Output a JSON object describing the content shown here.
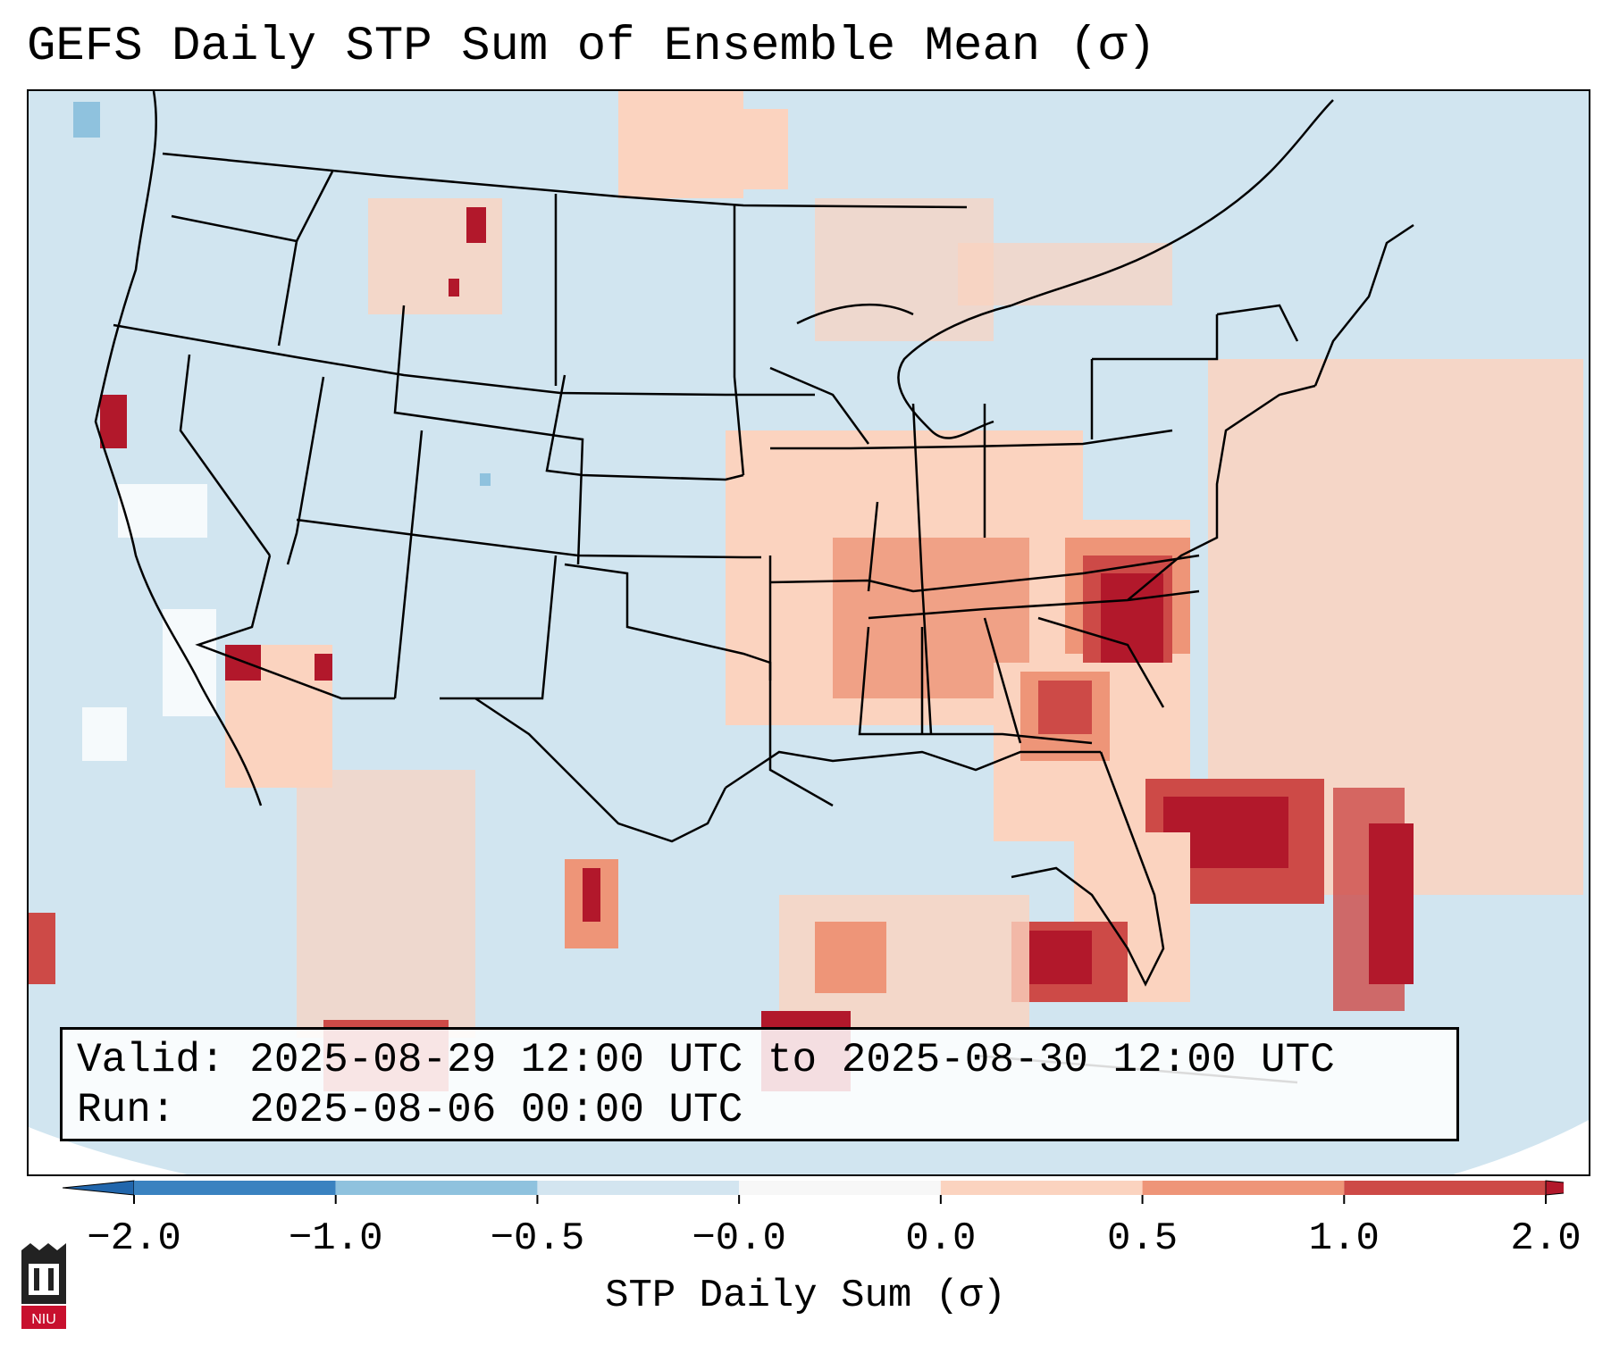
{
  "title": "GEFS Daily STP Sum of Ensemble Mean (σ)",
  "info": {
    "valid_label": "Valid:",
    "valid_value": "2025-08-29 12:00 UTC to 2025-08-30 12:00 UTC",
    "run_label": "Run:",
    "run_value": "2025-08-06 00:00 UTC"
  },
  "colorbar": {
    "label": "STP Daily Sum (σ)",
    "ticks": [
      "−2.0",
      "−1.0",
      "−0.5",
      "−0.0",
      "0.0",
      "0.5",
      "1.0",
      "2.0"
    ],
    "colors": [
      "#3a82c0",
      "#8fc2de",
      "#d3e5f0",
      "#f7f7f7",
      "#fbd3bf",
      "#ee9578",
      "#cd4a47"
    ],
    "extend_low_color": "#2166ac",
    "extend_high_color": "#b2182b"
  },
  "map": {
    "ocean_color": "#d1e5f0",
    "land_color": "#d1e5f0",
    "border_color": "#000000"
  },
  "logo": {
    "text": "NIU",
    "color": "#c8102e"
  }
}
